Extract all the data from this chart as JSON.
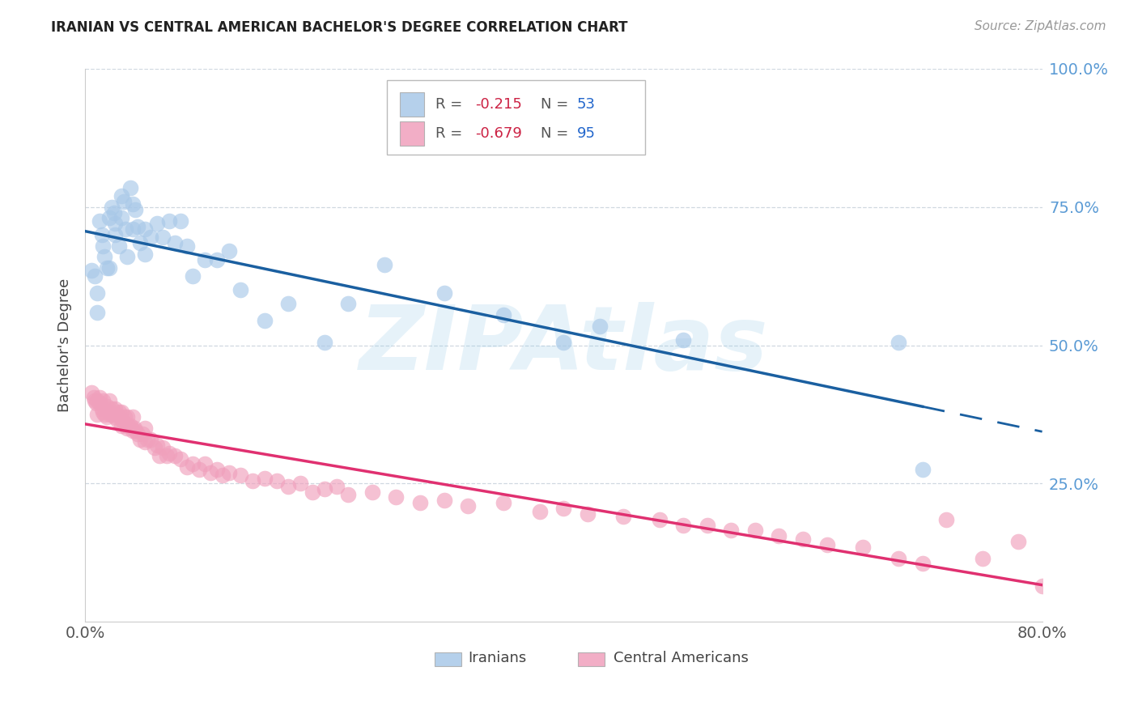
{
  "title": "IRANIAN VS CENTRAL AMERICAN BACHELOR'S DEGREE CORRELATION CHART",
  "source": "Source: ZipAtlas.com",
  "ylabel": "Bachelor's Degree",
  "xlim": [
    0.0,
    0.8
  ],
  "ylim": [
    0.0,
    1.0
  ],
  "blue_scatter_color": "#a8c8e8",
  "pink_scatter_color": "#f0a0bc",
  "blue_line_color": "#1a5fa0",
  "pink_line_color": "#e03070",
  "right_tick_color": "#5b9bd5",
  "watermark": "ZIPAtlas",
  "legend_R_blue": "-0.215",
  "legend_N_blue": "53",
  "legend_R_pink": "-0.679",
  "legend_N_pink": "95",
  "iranians_x": [
    0.005,
    0.008,
    0.01,
    0.01,
    0.012,
    0.014,
    0.015,
    0.016,
    0.018,
    0.02,
    0.02,
    0.022,
    0.024,
    0.025,
    0.025,
    0.028,
    0.03,
    0.03,
    0.032,
    0.034,
    0.035,
    0.038,
    0.04,
    0.04,
    0.042,
    0.044,
    0.046,
    0.05,
    0.05,
    0.055,
    0.06,
    0.065,
    0.07,
    0.075,
    0.08,
    0.085,
    0.09,
    0.1,
    0.11,
    0.12,
    0.13,
    0.15,
    0.17,
    0.2,
    0.22,
    0.25,
    0.3,
    0.35,
    0.4,
    0.43,
    0.5,
    0.68,
    0.7
  ],
  "iranians_y": [
    0.635,
    0.625,
    0.595,
    0.56,
    0.725,
    0.7,
    0.68,
    0.66,
    0.64,
    0.64,
    0.73,
    0.75,
    0.74,
    0.72,
    0.7,
    0.68,
    0.77,
    0.73,
    0.76,
    0.71,
    0.66,
    0.785,
    0.755,
    0.71,
    0.745,
    0.715,
    0.685,
    0.71,
    0.665,
    0.695,
    0.72,
    0.695,
    0.725,
    0.685,
    0.725,
    0.68,
    0.625,
    0.655,
    0.655,
    0.67,
    0.6,
    0.545,
    0.575,
    0.505,
    0.575,
    0.645,
    0.595,
    0.555,
    0.505,
    0.535,
    0.51,
    0.505,
    0.275
  ],
  "central_x": [
    0.005,
    0.007,
    0.008,
    0.009,
    0.01,
    0.01,
    0.012,
    0.013,
    0.014,
    0.015,
    0.015,
    0.016,
    0.018,
    0.018,
    0.02,
    0.02,
    0.021,
    0.022,
    0.023,
    0.025,
    0.025,
    0.026,
    0.027,
    0.028,
    0.03,
    0.03,
    0.031,
    0.032,
    0.033,
    0.035,
    0.035,
    0.036,
    0.038,
    0.04,
    0.04,
    0.041,
    0.042,
    0.044,
    0.046,
    0.048,
    0.05,
    0.05,
    0.052,
    0.055,
    0.058,
    0.06,
    0.062,
    0.065,
    0.068,
    0.07,
    0.075,
    0.08,
    0.085,
    0.09,
    0.095,
    0.1,
    0.105,
    0.11,
    0.115,
    0.12,
    0.13,
    0.14,
    0.15,
    0.16,
    0.17,
    0.18,
    0.19,
    0.2,
    0.21,
    0.22,
    0.24,
    0.26,
    0.28,
    0.3,
    0.32,
    0.35,
    0.38,
    0.4,
    0.42,
    0.45,
    0.48,
    0.5,
    0.52,
    0.54,
    0.56,
    0.58,
    0.6,
    0.62,
    0.65,
    0.68,
    0.7,
    0.72,
    0.75,
    0.78,
    0.8
  ],
  "central_y": [
    0.415,
    0.405,
    0.4,
    0.395,
    0.4,
    0.375,
    0.405,
    0.395,
    0.385,
    0.4,
    0.38,
    0.375,
    0.39,
    0.37,
    0.4,
    0.38,
    0.375,
    0.385,
    0.375,
    0.385,
    0.37,
    0.375,
    0.365,
    0.38,
    0.38,
    0.355,
    0.365,
    0.36,
    0.37,
    0.37,
    0.35,
    0.355,
    0.355,
    0.37,
    0.345,
    0.35,
    0.345,
    0.34,
    0.33,
    0.34,
    0.35,
    0.325,
    0.33,
    0.33,
    0.315,
    0.32,
    0.3,
    0.315,
    0.3,
    0.305,
    0.3,
    0.295,
    0.28,
    0.285,
    0.275,
    0.285,
    0.27,
    0.275,
    0.265,
    0.27,
    0.265,
    0.255,
    0.26,
    0.255,
    0.245,
    0.25,
    0.235,
    0.24,
    0.245,
    0.23,
    0.235,
    0.225,
    0.215,
    0.22,
    0.21,
    0.215,
    0.2,
    0.205,
    0.195,
    0.19,
    0.185,
    0.175,
    0.175,
    0.165,
    0.165,
    0.155,
    0.15,
    0.14,
    0.135,
    0.115,
    0.105,
    0.185,
    0.115,
    0.145,
    0.065
  ]
}
